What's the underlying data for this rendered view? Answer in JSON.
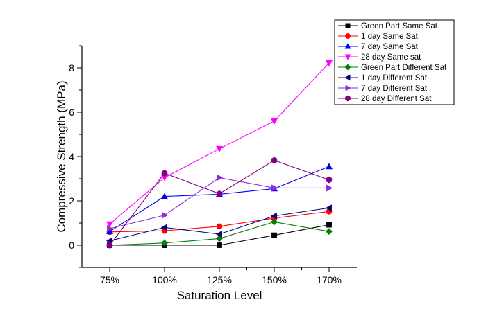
{
  "chart_data": {
    "type": "line",
    "title": "",
    "xlabel": "Saturation Level",
    "ylabel": "Compressive Strength (MPa)",
    "categories": [
      "75%",
      "100%",
      "125%",
      "150%",
      "170%"
    ],
    "ylim": [
      -1,
      9
    ],
    "yticks": [
      0,
      2,
      4,
      6,
      8
    ],
    "grid": false,
    "legend_position": "top-right",
    "series": [
      {
        "name": "Green Part Same Sat",
        "color": "#000000",
        "marker": "square",
        "values": [
          0.0,
          0.0,
          0.0,
          0.45,
          0.92
        ]
      },
      {
        "name": "1 day Same Sat",
        "color": "#ff0000",
        "marker": "circle",
        "values": [
          0.6,
          0.65,
          0.85,
          1.22,
          1.52
        ]
      },
      {
        "name": "7 day Same Sat",
        "color": "#0000ff",
        "marker": "triangle-up",
        "values": [
          0.62,
          2.2,
          2.3,
          2.55,
          3.55
        ]
      },
      {
        "name": "28 day Same sat",
        "color": "#ff00ff",
        "marker": "triangle-down",
        "values": [
          0.95,
          3.05,
          4.35,
          5.6,
          8.22
        ]
      },
      {
        "name": "Green Part Different Sat",
        "color": "#008000",
        "marker": "diamond",
        "values": [
          0.0,
          0.1,
          0.3,
          1.05,
          0.62
        ]
      },
      {
        "name": "1 day Different Sat",
        "color": "#000080",
        "marker": "triangle-left",
        "values": [
          0.2,
          0.8,
          0.5,
          1.32,
          1.68
        ]
      },
      {
        "name": "7 day Different Sat",
        "color": "#8a2be2",
        "marker": "triangle-right",
        "values": [
          0.75,
          1.35,
          3.05,
          2.58,
          2.58
        ]
      },
      {
        "name": "28 day Different Sat",
        "color": "#800080",
        "marker": "hexagon",
        "values": [
          0.0,
          3.25,
          2.32,
          3.83,
          2.95
        ]
      }
    ]
  }
}
